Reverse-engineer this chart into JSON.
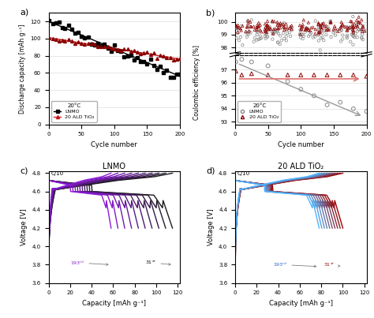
{
  "title_a": "a)",
  "title_b": "b)",
  "title_c": "c)",
  "title_d": "d)",
  "panel_c_title": "LNMO",
  "panel_d_title": "20 ALD TiO₂",
  "temp_label": "20°C",
  "lnmo_label": "LNMO",
  "ald_label": "20 ALD TiO₂",
  "xlabel_cycle": "Cycle number",
  "ylabel_a": "Discharge capacity [mAh g⁻¹]",
  "ylabel_b": "Coulombic efficiency [%]",
  "ylabel_cd": "Voltage [V]",
  "xlabel_cd": "Capacity [mAh g⁻¹]",
  "color_lnmo": "#000000",
  "color_ald": "#8B0000",
  "color_ald_line": "#cc2222",
  "bg_color": "#ffffff",
  "grid_color": "#dddddd"
}
